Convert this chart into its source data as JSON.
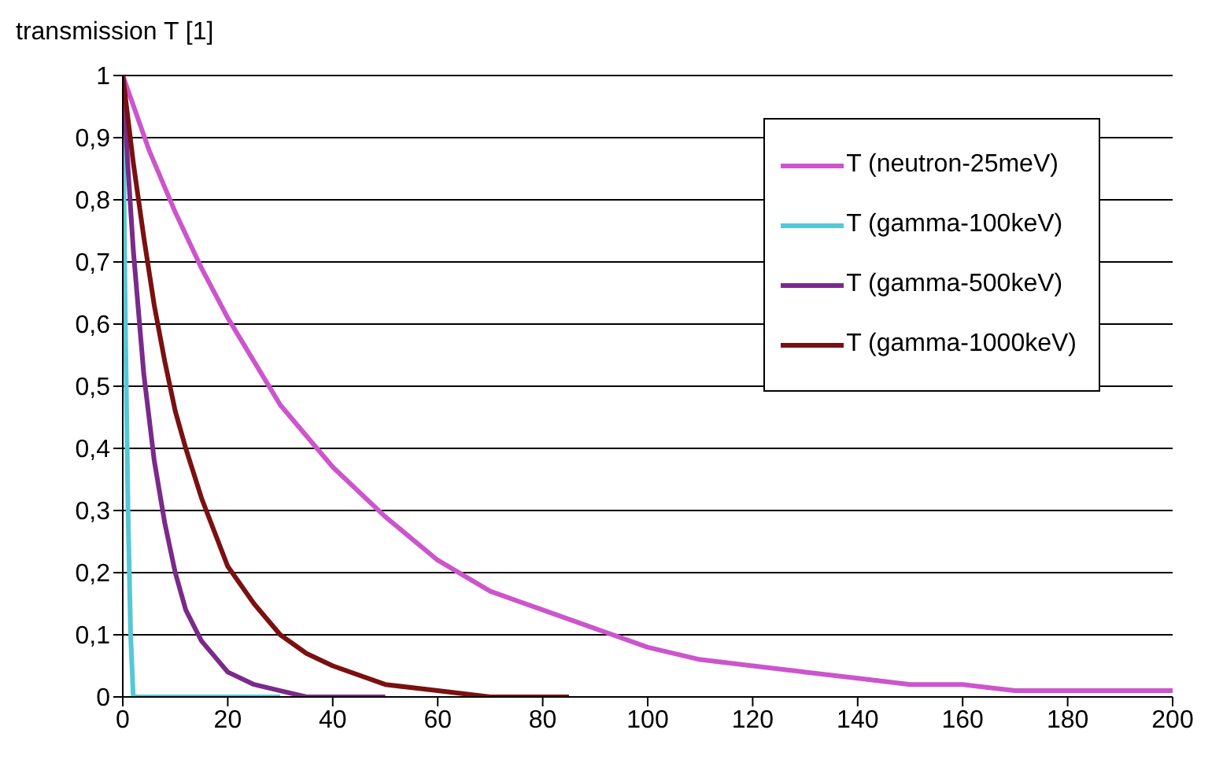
{
  "chart_data": {
    "type": "line",
    "ylabel": "transmission T [1]",
    "xlim": [
      0,
      200
    ],
    "xticks": [
      0,
      20,
      40,
      60,
      80,
      100,
      120,
      140,
      160,
      180,
      200
    ],
    "ylim": [
      0,
      1
    ],
    "yticks": [
      0,
      {
        "value": 0.1,
        "label": "0,1"
      },
      {
        "value": 0.2,
        "label": "0,2"
      },
      {
        "value": 0.3,
        "label": "0,3"
      },
      {
        "value": 0.4,
        "label": "0,4"
      },
      {
        "value": 0.5,
        "label": "0,5"
      },
      {
        "value": 0.6,
        "label": "0,6"
      },
      {
        "value": 0.7,
        "label": "0,7"
      },
      {
        "value": 0.8,
        "label": "0,8"
      },
      {
        "value": 0.9,
        "label": "0,9"
      },
      1
    ],
    "grid": "y",
    "legend": "top right",
    "series": [
      {
        "name": "T (neutron-25meV)",
        "color": "#cc55cc",
        "x": [
          0,
          5,
          10,
          15,
          20,
          30,
          40,
          50,
          60,
          70,
          80,
          90,
          100,
          110,
          120,
          130,
          140,
          150,
          160,
          170,
          180,
          190,
          200
        ],
        "values": [
          1,
          0.88,
          0.78,
          0.69,
          0.61,
          0.47,
          0.37,
          0.29,
          0.22,
          0.17,
          0.14,
          0.11,
          0.08,
          0.06,
          0.05,
          0.04,
          0.03,
          0.02,
          0.02,
          0.01,
          0.01,
          0.01,
          0.01
        ]
      },
      {
        "name": "T (gamma-100keV)",
        "color": "#55c8d8",
        "x": [
          0,
          0.5,
          1,
          1.5,
          2,
          10,
          20,
          30
        ],
        "values": [
          1,
          0.6,
          0.3,
          0.1,
          0,
          0,
          0,
          0
        ]
      },
      {
        "name": "T (gamma-500keV)",
        "color": "#7a2a8a",
        "x": [
          0,
          1,
          2,
          3,
          4,
          5,
          6,
          8,
          10,
          12,
          15,
          20,
          25,
          30,
          35,
          50
        ],
        "values": [
          1,
          0.85,
          0.72,
          0.62,
          0.52,
          0.45,
          0.38,
          0.28,
          0.2,
          0.14,
          0.09,
          0.04,
          0.02,
          0.01,
          0,
          0
        ]
      },
      {
        "name": "T (gamma-1000keV)",
        "color": "#7a1010",
        "x": [
          0,
          2,
          4,
          6,
          8,
          10,
          12,
          15,
          20,
          25,
          30,
          35,
          40,
          50,
          60,
          70,
          85
        ],
        "values": [
          1,
          0.86,
          0.74,
          0.63,
          0.54,
          0.46,
          0.4,
          0.32,
          0.21,
          0.15,
          0.1,
          0.07,
          0.05,
          0.02,
          0.01,
          0,
          0
        ]
      }
    ]
  }
}
